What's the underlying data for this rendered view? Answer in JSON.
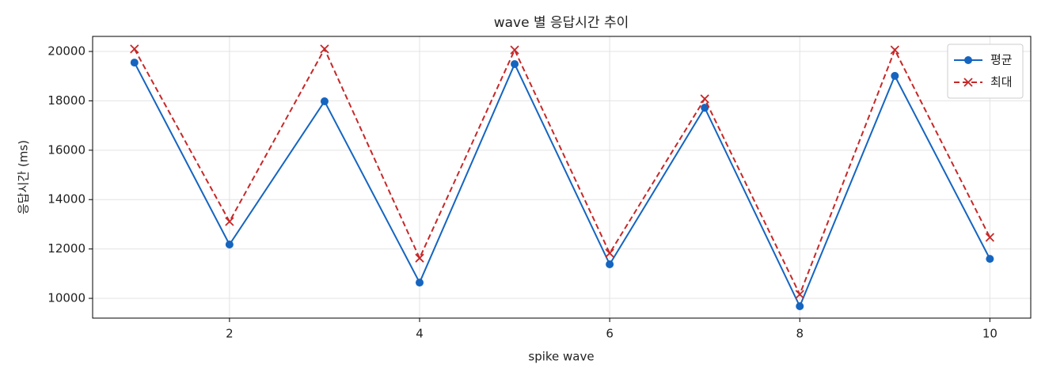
{
  "chart_data": {
    "type": "line",
    "title": "wave 별 응답시간 추이",
    "xlabel": "spike wave",
    "ylabel": "응답시간 (ms)",
    "x": [
      1,
      2,
      3,
      4,
      5,
      6,
      7,
      8,
      9,
      10
    ],
    "series": [
      {
        "name": "평균",
        "color": "#1565c0",
        "marker": "o",
        "linestyle": "solid",
        "values": [
          19550,
          12180,
          17980,
          10640,
          19490,
          11380,
          17720,
          9680,
          19010,
          11600
        ]
      },
      {
        "name": "최대",
        "color": "#c62828",
        "marker": "x",
        "linestyle": "dashed",
        "values": [
          20100,
          13110,
          20100,
          11630,
          20060,
          11830,
          18080,
          10160,
          20060,
          12470
        ]
      }
    ],
    "xlim": [
      0.56,
      10.43
    ],
    "ylim": [
      9200,
      20610
    ],
    "xticks": [
      2,
      4,
      6,
      8,
      10
    ],
    "yticks": [
      10000,
      12000,
      14000,
      16000,
      18000,
      20000
    ],
    "grid": true,
    "legend": "upper right"
  }
}
